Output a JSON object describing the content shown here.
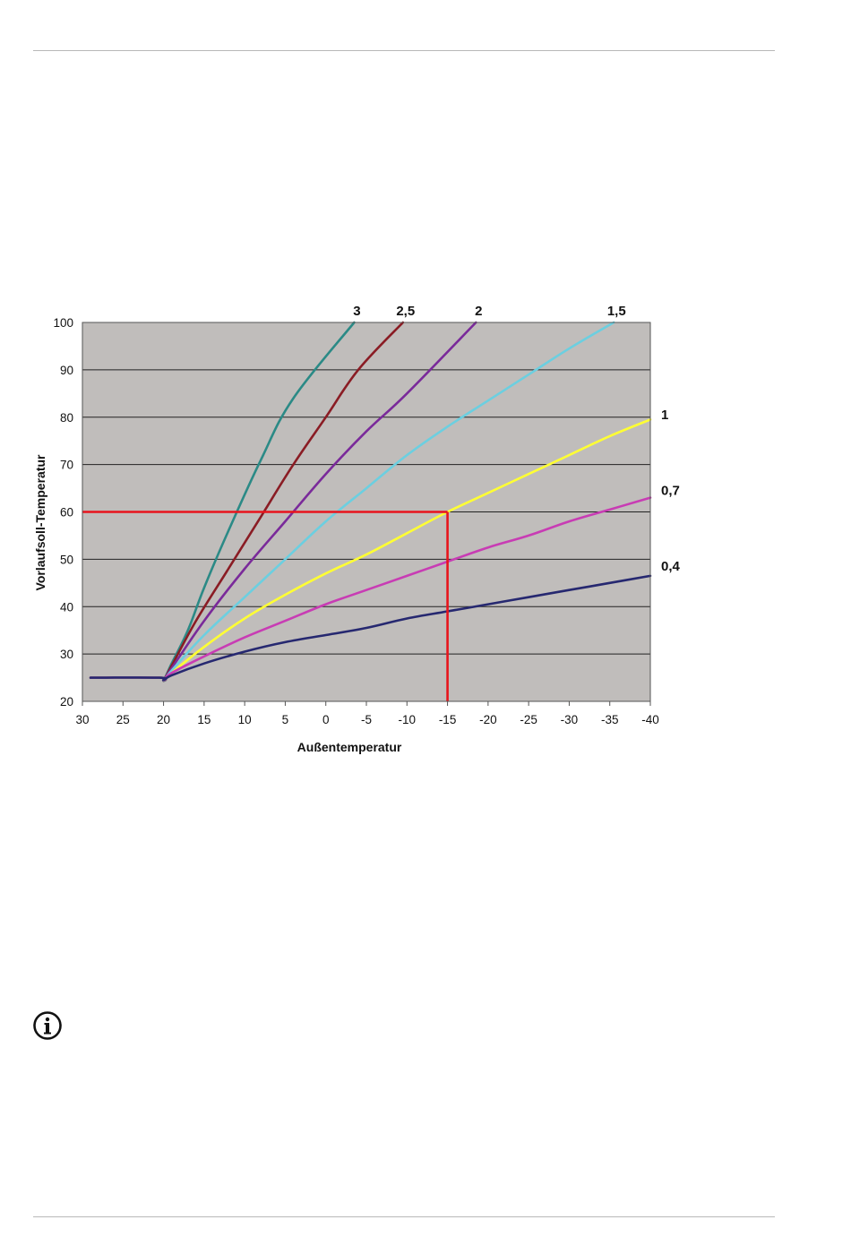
{
  "chart_data": {
    "type": "line",
    "xlabel": "Außentemperatur",
    "ylabel": "Vorlaufsoll-Temperatur",
    "xlim": [
      30,
      -40
    ],
    "ylim": [
      20,
      100
    ],
    "x_ticks": [
      30,
      25,
      20,
      15,
      10,
      5,
      0,
      -5,
      -10,
      -15,
      -20,
      -25,
      -30,
      -35,
      -40
    ],
    "y_ticks": [
      20,
      30,
      40,
      50,
      60,
      70,
      80,
      90,
      100
    ],
    "grid": "horizontal",
    "background": "#c0bdbb",
    "series": [
      {
        "name": "3",
        "color": "#2b8a86",
        "x": [
          29,
          20.5,
          20,
          19,
          17,
          15,
          12,
          8,
          4,
          -3.5
        ],
        "y": [
          25,
          25,
          24.5,
          28,
          35,
          44,
          56,
          71,
          84,
          100
        ]
      },
      {
        "name": "2,5",
        "color": "#8a1c24",
        "x": [
          29,
          20.5,
          20,
          19,
          16,
          12,
          8,
          4,
          0,
          -4,
          -9.5
        ],
        "y": [
          25,
          25,
          24.5,
          27.5,
          37,
          48,
          59,
          70,
          80,
          90,
          100
        ]
      },
      {
        "name": "2",
        "color": "#7a2a9a",
        "x": [
          29,
          20.5,
          20,
          19,
          15,
          10,
          5,
          0,
          -5,
          -10,
          -18.5
        ],
        "y": [
          25,
          25,
          24.5,
          27,
          37,
          48,
          58,
          68,
          77,
          85,
          100
        ]
      },
      {
        "name": "1,5",
        "color": "#6ccfe0",
        "x": [
          29,
          20.5,
          20,
          19,
          15,
          10,
          5,
          0,
          -5,
          -10,
          -15,
          -20,
          -25,
          -30,
          -35.5
        ],
        "y": [
          25,
          25,
          24.5,
          26.5,
          34,
          42,
          50,
          58,
          65,
          72,
          78,
          83.5,
          89,
          94.5,
          100
        ]
      },
      {
        "name": "1",
        "color": "#ffff33",
        "x": [
          29,
          20.5,
          20,
          19,
          15,
          10,
          5,
          0,
          -5,
          -10,
          -15,
          -20,
          -25,
          -30,
          -35,
          -40
        ],
        "y": [
          25,
          25,
          24.5,
          26,
          31.5,
          37.5,
          42.5,
          47,
          51,
          55.5,
          60,
          64,
          68,
          72,
          76,
          79.5
        ]
      },
      {
        "name": "0,7",
        "color": "#c83cb4",
        "x": [
          29,
          20.5,
          20,
          19,
          15,
          10,
          5,
          0,
          -5,
          -10,
          -15,
          -20,
          -25,
          -30,
          -35,
          -40
        ],
        "y": [
          25,
          25,
          24.5,
          26,
          29.5,
          33.5,
          37,
          40.5,
          43.5,
          46.5,
          49.5,
          52.5,
          55,
          58,
          60.5,
          63
        ]
      },
      {
        "name": "0,4",
        "color": "#262870",
        "x": [
          29,
          20.5,
          20,
          19,
          15,
          10,
          5,
          0,
          -5,
          -10,
          -15,
          -20,
          -25,
          -30,
          -35,
          -40
        ],
        "y": [
          25,
          25,
          24.5,
          25.5,
          28,
          30.5,
          32.5,
          34,
          35.5,
          37.5,
          39,
          40.5,
          42,
          43.5,
          45,
          46.5
        ]
      }
    ],
    "reference_lines": {
      "color": "#e8141c",
      "horizontal_y": 60,
      "vertical_x": -15
    },
    "curve_labels": {
      "top": [
        {
          "text": "3",
          "x": -3.5
        },
        {
          "text": "2,5",
          "x": -9.5
        },
        {
          "text": "2",
          "x": -18.5
        },
        {
          "text": "1,5",
          "x": -35.5
        }
      ],
      "right": [
        {
          "text": "1",
          "y": 80
        },
        {
          "text": "0,7",
          "y": 64
        },
        {
          "text": "0,4",
          "y": 48
        }
      ]
    }
  },
  "icons": {
    "info": "info-circle-icon"
  }
}
